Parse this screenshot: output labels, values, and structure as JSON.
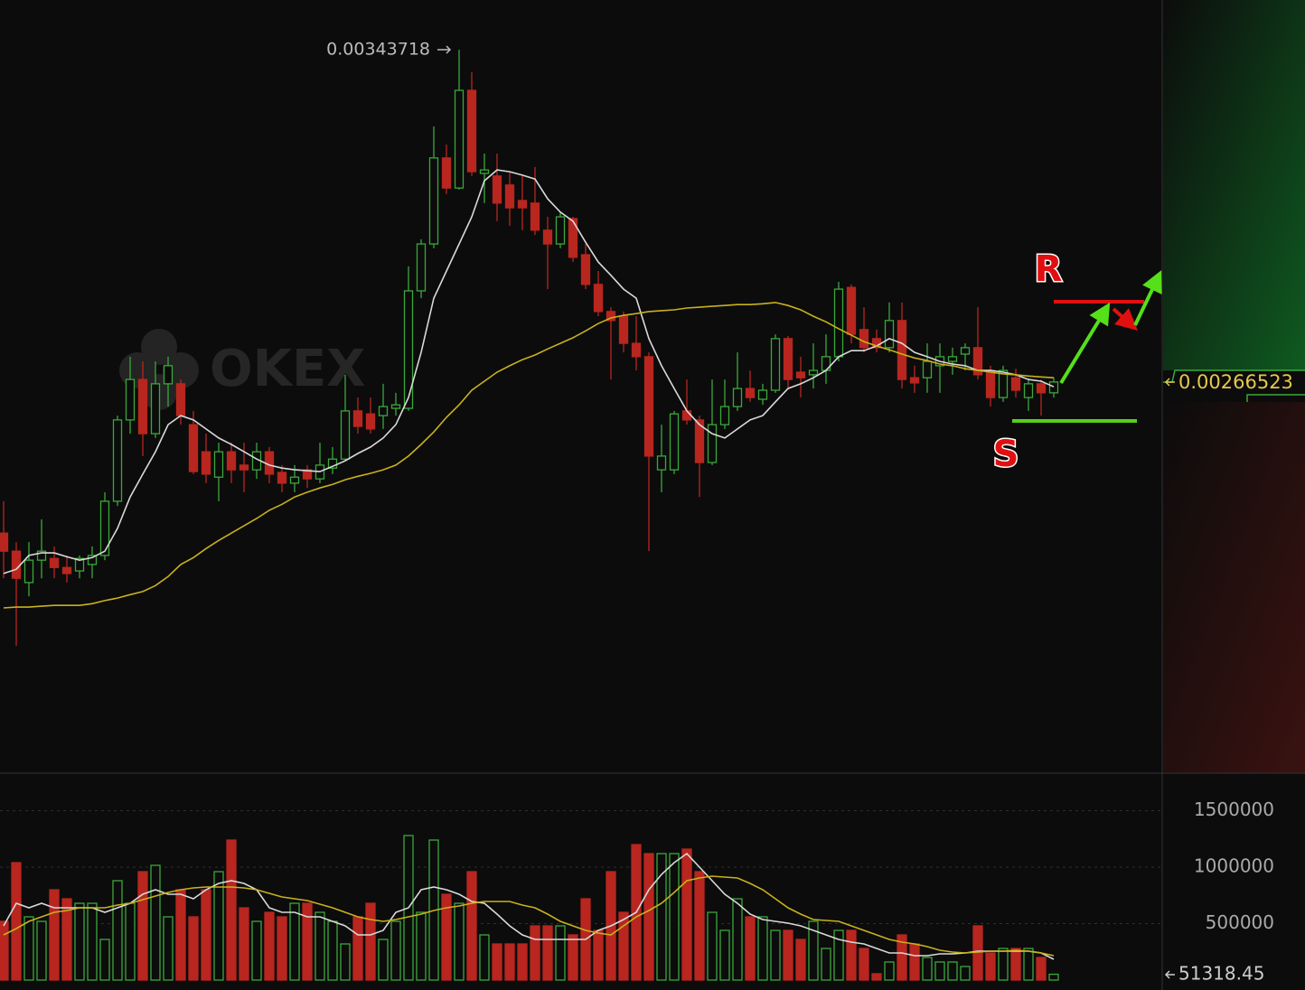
{
  "chart_data": [
    {
      "type": "candlestick",
      "watermark": "OKEX",
      "open": [
        0.002314,
        0.002272,
        0.002199,
        0.002251,
        0.002255,
        0.002234,
        0.002226,
        0.002241,
        0.002262,
        0.002388,
        0.002577,
        0.002671,
        0.002545,
        0.002661,
        0.002661,
        0.002566,
        0.002503,
        0.002444,
        0.002503,
        0.002472,
        0.002461,
        0.002503,
        0.002455,
        0.00243,
        0.002461,
        0.00244,
        0.002465,
        0.002486,
        0.002598,
        0.002591,
        0.002587,
        0.002604,
        0.002604,
        0.002877,
        0.002986,
        0.003186,
        0.003116,
        0.003343,
        0.00315,
        0.003144,
        0.003123,
        0.003087,
        0.003081,
        0.003018,
        0.002986,
        0.003045,
        0.002961,
        0.002892,
        0.002829,
        0.002818,
        0.002755,
        0.002724,
        0.002461,
        0.002461,
        0.002598,
        0.002577,
        0.002478,
        0.002566,
        0.002608,
        0.00265,
        0.002625,
        0.002646,
        0.002766,
        0.002688,
        0.002682,
        0.002692,
        0.002724,
        0.002885,
        0.002787,
        0.002766,
        0.002745,
        0.002808,
        0.002675,
        0.002675,
        0.002703,
        0.002713,
        0.00273,
        0.002745,
        0.002692,
        0.002629,
        0.002675,
        0.002629,
        0.002661,
        0.00264
      ],
      "high": [
        0.002388,
        0.002293,
        0.002293,
        0.002346,
        0.002283,
        0.002262,
        0.002262,
        0.002283,
        0.002409,
        0.002587,
        0.002724,
        0.002713,
        0.002713,
        0.002724,
        0.002671,
        0.002598,
        0.002545,
        0.002524,
        0.002524,
        0.002524,
        0.002524,
        0.002514,
        0.002472,
        0.002472,
        0.002472,
        0.002524,
        0.002514,
        0.002682,
        0.002629,
        0.002629,
        0.002661,
        0.00264,
        0.002934,
        0.002997,
        0.003259,
        0.003217,
        0.00343718,
        0.003385,
        0.003196,
        0.003196,
        0.003154,
        0.003144,
        0.003165,
        0.003049,
        0.00306,
        0.003049,
        0.002986,
        0.002923,
        0.002839,
        0.002829,
        0.002818,
        0.002734,
        0.002566,
        0.002598,
        0.002671,
        0.002587,
        0.002671,
        0.002671,
        0.002734,
        0.002692,
        0.002661,
        0.002776,
        0.002772,
        0.002724,
        0.002755,
        0.002776,
        0.002898,
        0.002892,
        0.002839,
        0.002787,
        0.00285,
        0.00285,
        0.002703,
        0.002755,
        0.002755,
        0.002745,
        0.002755,
        0.002839,
        0.002703,
        0.002703,
        0.002696,
        0.002671,
        0.002671,
        0.002675
      ],
      "low": [
        0.002209,
        0.002052,
        0.002167,
        0.002209,
        0.002209,
        0.002199,
        0.002209,
        0.002209,
        0.002251,
        0.002377,
        0.002545,
        0.002493,
        0.002535,
        0.002608,
        0.002566,
        0.002451,
        0.00243,
        0.002388,
        0.00243,
        0.002409,
        0.00244,
        0.00243,
        0.002409,
        0.002409,
        0.002419,
        0.00243,
        0.002451,
        0.002482,
        0.002545,
        0.002545,
        0.002556,
        0.002587,
        0.002598,
        0.00286,
        0.002976,
        0.003102,
        0.003112,
        0.003144,
        0.003081,
        0.003039,
        0.003028,
        0.003018,
        0.003007,
        0.002881,
        0.002976,
        0.002944,
        0.002881,
        0.002818,
        0.002671,
        0.002734,
        0.002692,
        0.002272,
        0.002409,
        0.002451,
        0.002566,
        0.002398,
        0.002472,
        0.002556,
        0.002598,
        0.002619,
        0.002612,
        0.00264,
        0.00265,
        0.002629,
        0.00265,
        0.002661,
        0.002713,
        0.002755,
        0.002734,
        0.002734,
        0.002734,
        0.00265,
        0.00264,
        0.00264,
        0.00264,
        0.002682,
        0.002692,
        0.002671,
        0.002608,
        0.002619,
        0.002629,
        0.002598,
        0.002587,
        0.002629
      ],
      "close": [
        0.002272,
        0.002209,
        0.002251,
        0.002272,
        0.002234,
        0.00222,
        0.002255,
        0.002262,
        0.002388,
        0.002577,
        0.002671,
        0.002545,
        0.002661,
        0.002703,
        0.002587,
        0.002457,
        0.002451,
        0.002503,
        0.002461,
        0.002461,
        0.002503,
        0.002451,
        0.00243,
        0.002444,
        0.00244,
        0.002472,
        0.002486,
        0.002598,
        0.002562,
        0.002556,
        0.002608,
        0.002612,
        0.002877,
        0.002986,
        0.003186,
        0.003116,
        0.003343,
        0.003154,
        0.003158,
        0.003081,
        0.00307,
        0.00307,
        0.003018,
        0.002986,
        0.003049,
        0.002955,
        0.002892,
        0.002829,
        0.002808,
        0.002755,
        0.002724,
        0.002493,
        0.002493,
        0.002591,
        0.002577,
        0.002478,
        0.002566,
        0.002608,
        0.00265,
        0.002629,
        0.002646,
        0.002766,
        0.002671,
        0.002675,
        0.002692,
        0.002724,
        0.002881,
        0.002776,
        0.002745,
        0.002745,
        0.002808,
        0.002671,
        0.002663,
        0.002713,
        0.002724,
        0.002724,
        0.002745,
        0.002682,
        0.002629,
        0.002692,
        0.002646,
        0.002661,
        0.00264,
        0.00266523
      ],
      "up_color": "#3aa83a",
      "down_color": "#b8261f",
      "ma_lines": [
        {
          "color": "#d9d9d9",
          "values": [
            0.00222,
            0.00223,
            0.002262,
            0.002268,
            0.002268,
            0.002259,
            0.002251,
            0.002257,
            0.002272,
            0.002325,
            0.002398,
            0.002451,
            0.002503,
            0.002566,
            0.002587,
            0.002577,
            0.002556,
            0.002535,
            0.00252,
            0.002503,
            0.002486,
            0.002472,
            0.002465,
            0.002461,
            0.002459,
            0.002457,
            0.002469,
            0.002482,
            0.002499,
            0.002514,
            0.002535,
            0.002566,
            0.002629,
            0.002734,
            0.00286,
            0.002923,
            0.002986,
            0.003049,
            0.003133,
            0.003158,
            0.003154,
            0.003146,
            0.003137,
            0.003091,
            0.00306,
            0.003039,
            0.00299,
            0.002944,
            0.002913,
            0.002881,
            0.00286,
            0.002766,
            0.002703,
            0.00265,
            0.002598,
            0.002566,
            0.002545,
            0.002535,
            0.002556,
            0.002577,
            0.002587,
            0.002619,
            0.00265,
            0.002661,
            0.002675,
            0.002692,
            0.002724,
            0.002738,
            0.002738,
            0.002749,
            0.002766,
            0.002755,
            0.002734,
            0.002724,
            0.002713,
            0.002707,
            0.002703,
            0.002692,
            0.002692,
            0.002688,
            0.002682,
            0.002671,
            0.002667,
            0.002654
          ]
        },
        {
          "color": "#c9b11c",
          "values": [
            0.00214,
            0.002142,
            0.002142,
            0.002144,
            0.002146,
            0.002146,
            0.002146,
            0.00215,
            0.002157,
            0.002163,
            0.002171,
            0.002178,
            0.002192,
            0.002213,
            0.002241,
            0.002257,
            0.002278,
            0.002297,
            0.002314,
            0.002331,
            0.002348,
            0.002367,
            0.002381,
            0.002398,
            0.002409,
            0.002419,
            0.002427,
            0.002438,
            0.002446,
            0.002453,
            0.002461,
            0.002472,
            0.002493,
            0.00252,
            0.002549,
            0.002583,
            0.002612,
            0.002646,
            0.002667,
            0.002688,
            0.002703,
            0.002717,
            0.002728,
            0.002742,
            0.002755,
            0.002768,
            0.002784,
            0.002801,
            0.002814,
            0.00282,
            0.002824,
            0.002829,
            0.002831,
            0.002833,
            0.002837,
            0.002839,
            0.002841,
            0.002843,
            0.002845,
            0.002845,
            0.002847,
            0.00285,
            0.002843,
            0.002833,
            0.002818,
            0.002805,
            0.002789,
            0.002774,
            0.002759,
            0.002749,
            0.00274,
            0.00273,
            0.002721,
            0.002715,
            0.002707,
            0.002703,
            0.002696,
            0.002692,
            0.002688,
            0.002684,
            0.002682,
            0.002679,
            0.002677,
            0.002675
          ]
        }
      ],
      "ylim": [
        0.001758,
        0.003553
      ],
      "high_label": 0.00343718,
      "last_price": 0.00266523,
      "resistance_label": "R",
      "support_label": "S"
    },
    {
      "type": "volume",
      "values": [
        520000,
        1040000,
        560000,
        520000,
        800000,
        720000,
        680000,
        680000,
        360000,
        880000,
        680000,
        960000,
        1016000,
        560000,
        800000,
        560000,
        800000,
        960000,
        1240000,
        640000,
        520000,
        600000,
        560000,
        680000,
        680000,
        600000,
        520000,
        320000,
        560000,
        680000,
        360000,
        520000,
        1280000,
        600000,
        1240000,
        760000,
        680000,
        960000,
        400000,
        320000,
        320000,
        320000,
        480000,
        480000,
        480000,
        400000,
        720000,
        440000,
        960000,
        600000,
        1200000,
        1120000,
        1120000,
        1120000,
        1160000,
        960000,
        600000,
        440000,
        720000,
        560000,
        560000,
        440000,
        440000,
        360000,
        520000,
        280000,
        440000,
        440000,
        280000,
        56000,
        160000,
        400000,
        320000,
        200000,
        160000,
        160000,
        120000,
        480000,
        240000,
        280000,
        280000,
        280000,
        200000,
        51318.45
      ],
      "ma_lines": [
        {
          "color": "#d9d9d9",
          "values": [
            480000,
            680000,
            640000,
            680000,
            640000,
            640000,
            640000,
            640000,
            600000,
            640000,
            680000,
            760000,
            800000,
            760000,
            760000,
            720000,
            800000,
            856000,
            880000,
            856000,
            800000,
            640000,
            600000,
            600000,
            560000,
            560000,
            520000,
            480000,
            400000,
            400000,
            440000,
            600000,
            640000,
            800000,
            824000,
            800000,
            760000,
            696000,
            680000,
            584000,
            480000,
            400000,
            360000,
            360000,
            360000,
            360000,
            360000,
            440000,
            480000,
            536000,
            600000,
            800000,
            936000,
            1040000,
            1120000,
            1000000,
            880000,
            760000,
            680000,
            584000,
            536000,
            520000,
            504000,
            480000,
            440000,
            400000,
            360000,
            336000,
            320000,
            280000,
            240000,
            240000,
            216000,
            216000,
            232000,
            232000,
            240000,
            256000,
            256000,
            256000,
            256000,
            256000,
            240000,
            184000
          ]
        },
        {
          "color": "#c9b11c",
          "values": [
            400000,
            456000,
            520000,
            560000,
            600000,
            616000,
            640000,
            640000,
            640000,
            664000,
            680000,
            712000,
            744000,
            776000,
            800000,
            816000,
            824000,
            824000,
            824000,
            816000,
            800000,
            768000,
            736000,
            720000,
            704000,
            672000,
            640000,
            600000,
            560000,
            536000,
            520000,
            536000,
            560000,
            584000,
            616000,
            640000,
            656000,
            680000,
            696000,
            696000,
            696000,
            664000,
            640000,
            584000,
            520000,
            480000,
            440000,
            416000,
            400000,
            480000,
            560000,
            616000,
            680000,
            776000,
            880000,
            904000,
            920000,
            912000,
            904000,
            856000,
            800000,
            720000,
            640000,
            584000,
            536000,
            528000,
            520000,
            480000,
            440000,
            400000,
            360000,
            336000,
            320000,
            296000,
            264000,
            248000,
            240000,
            248000,
            256000,
            256000,
            264000,
            256000,
            240000,
            216000
          ]
        }
      ],
      "ylim": [
        0,
        1824000
      ],
      "yticks": [
        500000,
        1000000,
        1500000
      ],
      "grid": true,
      "last_value": 51318.45
    }
  ]
}
